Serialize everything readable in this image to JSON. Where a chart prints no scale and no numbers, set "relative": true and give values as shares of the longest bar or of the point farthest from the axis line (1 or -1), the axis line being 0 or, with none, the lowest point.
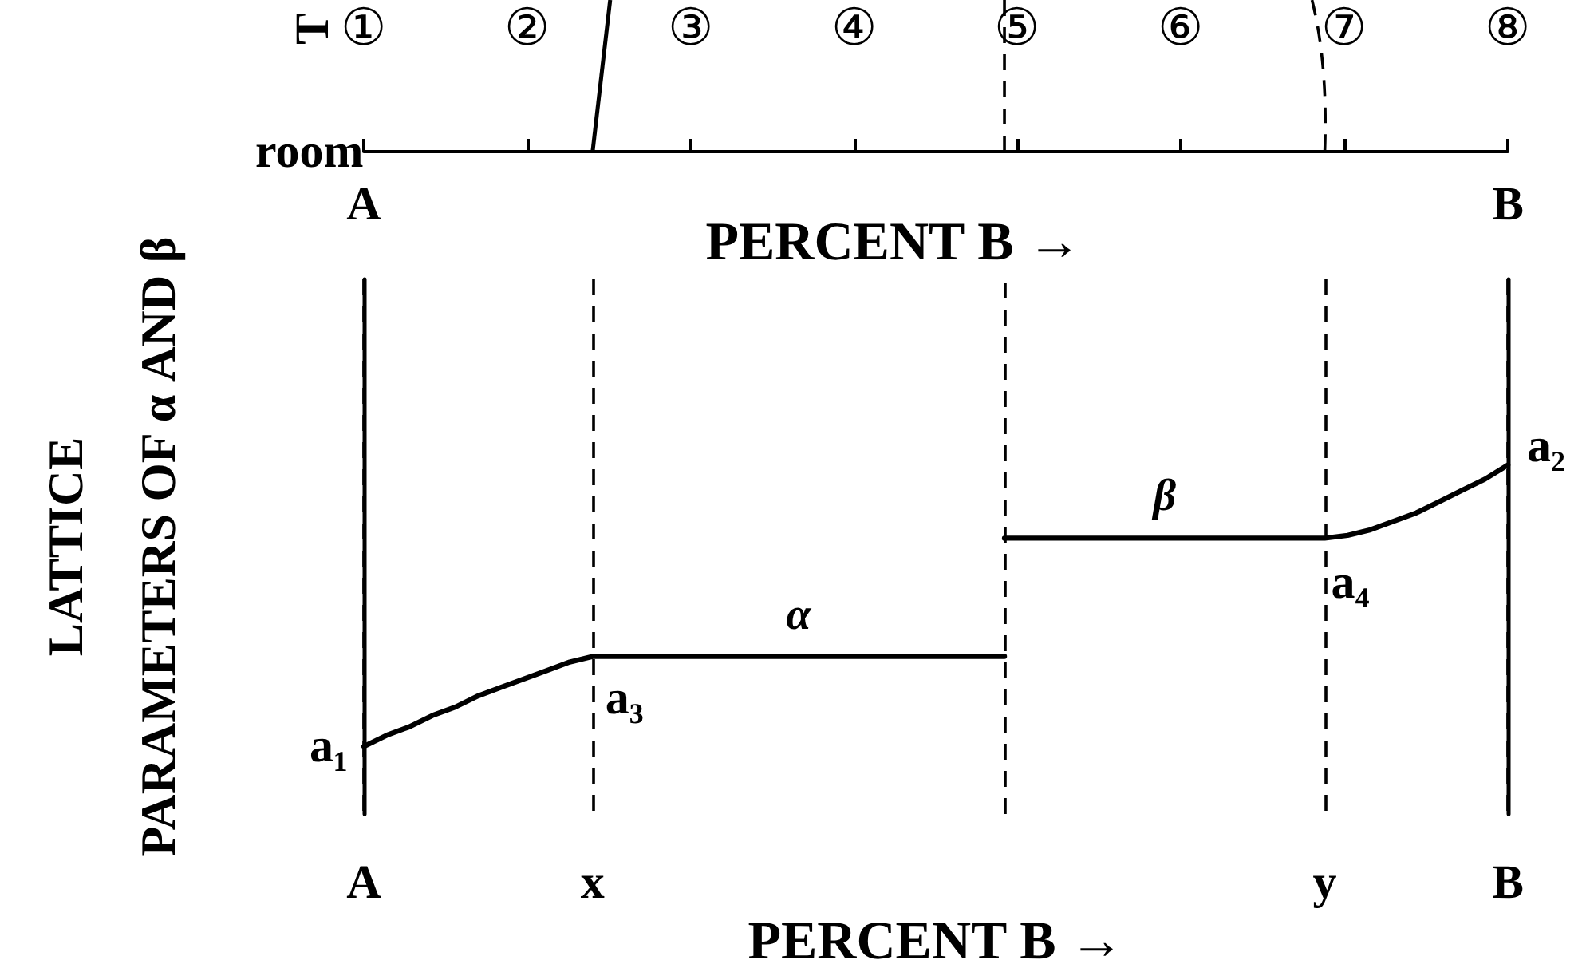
{
  "chart_data": [
    {
      "type": "other",
      "ylabel": "T",
      "categories": [
        "①",
        "②",
        "③",
        "④",
        "⑤",
        "⑥",
        "⑦",
        "⑧"
      ],
      "annotations": [
        "room",
        "A",
        "B",
        "PERCENT B →"
      ]
    },
    {
      "type": "line",
      "xlabel": "PERCENT B →",
      "ylabel": "LATTICE\nPARAMETERS OF α AND β",
      "relative": true,
      "marker": "none",
      "categories": [
        "A",
        null,
        null,
        null,
        null,
        null,
        null,
        null,
        null,
        null,
        "x",
        null,
        null,
        null,
        null,
        null,
        null,
        null,
        null,
        null,
        null,
        null,
        null,
        null,
        null,
        null,
        null,
        null,
        null,
        null,
        null,
        null,
        null,
        null,
        null,
        null,
        null,
        null,
        null,
        null,
        null,
        null,
        "y",
        null,
        null,
        null,
        null,
        null,
        null,
        null,
        "B"
      ],
      "series": [
        {
          "name": "α",
          "color": "#000000",
          "values": [
            0,
            0.04,
            0.07,
            0.11,
            0.14,
            0.18,
            0.21,
            0.24,
            0.27,
            0.3,
            0.32,
            0.32,
            0.32,
            0.32,
            0.32,
            0.32,
            0.32,
            0.32,
            0.32,
            0.32,
            0.32,
            0.32,
            0.32,
            0.32,
            0.32,
            0.32,
            0.32,
            0.32,
            0.32,
            null,
            null,
            null,
            null,
            null,
            null,
            null,
            null,
            null,
            null,
            null,
            null,
            null,
            null,
            null,
            null,
            null,
            null,
            null,
            null,
            null,
            null
          ]
        },
        {
          "name": "β",
          "color": "#000000",
          "values": [
            null,
            null,
            null,
            null,
            null,
            null,
            null,
            null,
            null,
            null,
            null,
            null,
            null,
            null,
            null,
            null,
            null,
            null,
            null,
            null,
            null,
            null,
            null,
            null,
            null,
            null,
            null,
            null,
            0.74,
            0.74,
            0.74,
            0.74,
            0.74,
            0.74,
            0.74,
            0.74,
            0.74,
            0.74,
            0.74,
            0.74,
            0.74,
            0.74,
            0.74,
            0.75,
            0.77,
            0.8,
            0.83,
            0.87,
            0.91,
            0.95,
            1
          ]
        }
      ],
      "annotations": [
        {
          "text": "a₁",
          "x": "A",
          "y": 0
        },
        {
          "text": "a₃",
          "x": "x",
          "y": 0.32
        },
        {
          "text": "a₄",
          "x": "y",
          "y": 0.74
        },
        {
          "text": "a₂",
          "x": "B",
          "y": 1
        }
      ],
      "grid": "x"
    }
  ]
}
